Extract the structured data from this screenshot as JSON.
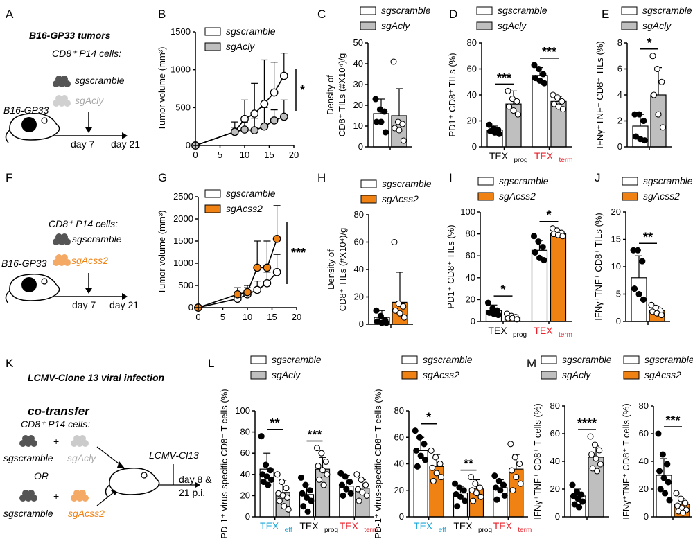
{
  "colors": {
    "scramble": "#ffffff",
    "acly": "#bfbfbf",
    "acss2": "#f08214",
    "black": "#000000",
    "cyan": "#19a7d9",
    "red": "#e8212a",
    "gray_text": "#a6a6a6"
  },
  "panels": {
    "A": "A",
    "B": "B",
    "C": "C",
    "D": "D",
    "E": "E",
    "F": "F",
    "G": "G",
    "H": "H",
    "I": "I",
    "J": "J",
    "K": "K",
    "L": "L",
    "M": "M"
  },
  "legend": {
    "scramble": "sgscramble",
    "acly": "sgAcly",
    "acss2": "sgAcss2"
  },
  "schematic": {
    "a_title": "B16-GP33 tumors",
    "a_cells": "CD8⁺ P14 cells:",
    "a_model": "B16-GP33",
    "day7": "day 7",
    "day21": "day 21",
    "f_cells": "CD8⁺ P14 cells:",
    "f_model": "B16-GP33",
    "k_title": "LCMV-Clone 13 viral infection",
    "k_co": "co-transfer",
    "k_cells": "CD8⁺ P14 cells:",
    "or": "OR",
    "plus": "+",
    "lcmv": "LCMV-Cl13",
    "day8": "day 8 &",
    "pi": "21 p.i."
  },
  "ylabels": {
    "tumor": "Tumor volume (mm³)",
    "dens1": "Density of",
    "dens2": "CD8⁺ TILs (#X10⁴)/g",
    "pd1": "PD1⁺ CD8⁺ TILs (%)",
    "ifn": "IFNγ⁺TNF⁺ CD8⁺ TILs (%)",
    "pd1v": "PD-1⁺ virus-specific CD8⁺ T cells (%)",
    "ifnt": "IFNγ⁺TNF⁺ CD8⁺ T cells (%)"
  },
  "xcats": {
    "prog": "TEX",
    "prog_sub": "prog",
    "term": "TEX",
    "term_sub": "term",
    "eff": "TEX",
    "eff_sub": "eff"
  },
  "chart_data": [
    {
      "panel": "B",
      "type": "line",
      "xlabel": "",
      "ylabel": "Tumor volume (mm³)",
      "xlim": [
        0,
        20
      ],
      "ylim": [
        0,
        1500
      ],
      "xticks": [
        0,
        5,
        10,
        15,
        20
      ],
      "yticks": [
        0,
        500,
        1000,
        1500
      ],
      "series": [
        {
          "name": "sgscramble",
          "x": [
            0,
            8,
            10,
            12,
            14,
            16,
            18
          ],
          "y": [
            0,
            180,
            350,
            420,
            550,
            700,
            920
          ],
          "err": [
            0,
            130,
            250,
            400,
            580,
            400,
            300
          ]
        },
        {
          "name": "sgAcly",
          "x": [
            0,
            8,
            10,
            12,
            14,
            16,
            18
          ],
          "y": [
            0,
            180,
            210,
            200,
            250,
            330,
            380
          ],
          "err": [
            0,
            60,
            100,
            160,
            250,
            140,
            220
          ]
        }
      ],
      "significance": "*"
    },
    {
      "panel": "C",
      "type": "bar",
      "ylabel": "Density of CD8⁺ TILs (#X10⁴)/g",
      "ylim": [
        0,
        50
      ],
      "yticks": [
        0,
        10,
        20,
        30,
        40,
        50
      ],
      "series": [
        {
          "name": "sgscramble",
          "values": [
            16
          ],
          "err": [
            7
          ],
          "points": [
            23,
            18,
            17,
            12,
            12,
            7
          ]
        },
        {
          "name": "sgAcly",
          "values": [
            15
          ],
          "err": [
            13
          ],
          "points": [
            41,
            12,
            11,
            9,
            8,
            3
          ]
        }
      ]
    },
    {
      "panel": "D",
      "type": "bar",
      "ylabel": "PD1⁺ CD8⁺ TILs (%)",
      "categories": [
        "TEXprog",
        "TEXterm"
      ],
      "ylim": [
        0,
        80
      ],
      "yticks": [
        0,
        20,
        40,
        60,
        80
      ],
      "series": [
        {
          "name": "sgscramble",
          "values": [
            13,
            55
          ],
          "err": [
            3,
            6
          ],
          "points": [
            [
              17,
              14,
              13,
              12,
              11,
              10
            ],
            [
              63,
              60,
              56,
              53,
              51,
              49
            ]
          ]
        },
        {
          "name": "sgAcly",
          "values": [
            33,
            35
          ],
          "err": [
            10,
            4
          ],
          "points": [
            [
              43,
              37,
              35,
              31,
              28,
              25
            ],
            [
              40,
              38,
              35,
              33,
              31,
              29
            ]
          ]
        }
      ],
      "significance": [
        "***",
        "***"
      ]
    },
    {
      "panel": "E",
      "type": "bar",
      "ylabel": "IFNγ⁺TNF⁺ CD8⁺ TILs (%)",
      "ylim": [
        0,
        8
      ],
      "yticks": [
        0,
        2,
        4,
        6,
        8
      ],
      "series": [
        {
          "name": "sgscramble",
          "values": [
            1.6
          ],
          "err": [
            0.9
          ],
          "points": [
            2.5,
            2.5,
            2.0,
            0.8,
            0.6,
            0.5
          ]
        },
        {
          "name": "sgAcly",
          "values": [
            4.0
          ],
          "err": [
            2.1
          ],
          "points": [
            7.0,
            6.0,
            5.0,
            4.0,
            2.5,
            1.5
          ]
        }
      ],
      "significance": "*"
    },
    {
      "panel": "G",
      "type": "line",
      "ylabel": "Tumor volume (mm³)",
      "xlim": [
        0,
        20
      ],
      "ylim": [
        0,
        2500
      ],
      "xticks": [
        0,
        5,
        10,
        15,
        20
      ],
      "yticks": [
        0,
        500,
        1000,
        1500,
        2000,
        2500
      ],
      "series": [
        {
          "name": "sgscramble",
          "x": [
            0,
            8,
            10,
            12,
            14,
            16
          ],
          "y": [
            0,
            200,
            300,
            400,
            550,
            800
          ],
          "err": [
            0,
            100,
            150,
            200,
            250,
            400
          ]
        },
        {
          "name": "sgAcss2",
          "x": [
            0,
            8,
            10,
            12,
            14,
            16
          ],
          "y": [
            0,
            300,
            350,
            900,
            900,
            1550
          ],
          "err": [
            0,
            150,
            150,
            600,
            600,
            750
          ]
        }
      ],
      "significance": "***"
    },
    {
      "panel": "H",
      "type": "bar",
      "ylabel": "Density of CD8⁺ TILs (#X10⁴)/g",
      "ylim": [
        0,
        80
      ],
      "yticks": [
        0,
        20,
        40,
        60,
        80
      ],
      "series": [
        {
          "name": "sgscramble",
          "values": [
            5
          ],
          "err": [
            5
          ],
          "points": [
            10,
            6,
            3,
            2,
            1,
            1
          ]
        },
        {
          "name": "sgAcss2",
          "values": [
            16
          ],
          "err": [
            22
          ],
          "points": [
            60,
            15,
            13,
            10,
            8,
            5
          ]
        }
      ]
    },
    {
      "panel": "I",
      "type": "bar",
      "ylabel": "PD1⁺ CD8⁺ TILs (%)",
      "categories": [
        "TEXprog",
        "TEXterm"
      ],
      "ylim": [
        0,
        100
      ],
      "yticks": [
        0,
        20,
        40,
        60,
        80,
        100
      ],
      "series": [
        {
          "name": "sgscramble",
          "values": [
            10,
            65
          ],
          "err": [
            5,
            9
          ],
          "points": [
            [
              17,
              12,
              10,
              8,
              7,
              6
            ],
            [
              78,
              73,
              68,
              63,
              58,
              56
            ]
          ]
        },
        {
          "name": "sgAcss2",
          "values": [
            4,
            80
          ],
          "err": [
            2,
            3
          ],
          "points": [
            [
              7,
              5,
              4,
              3,
              3,
              2
            ],
            [
              85,
              83,
              81,
              80,
              79,
              78
            ]
          ]
        }
      ],
      "significance": [
        "*",
        "*"
      ]
    },
    {
      "panel": "J",
      "type": "bar",
      "ylabel": "IFNγ⁺TNF⁺ CD8⁺ TILs (%)",
      "ylim": [
        0,
        20
      ],
      "yticks": [
        0,
        5,
        10,
        15,
        20
      ],
      "series": [
        {
          "name": "sgscramble",
          "values": [
            8
          ],
          "err": [
            4
          ],
          "points": [
            13,
            13,
            11,
            6,
            5,
            4
          ]
        },
        {
          "name": "sgAcss2",
          "values": [
            2
          ],
          "err": [
            0.8
          ],
          "points": [
            3,
            2.5,
            2,
            1.8,
            1.5,
            1.2
          ]
        }
      ],
      "significance": "**"
    },
    {
      "panel": "L1",
      "type": "bar",
      "ylabel": "PD-1⁺ virus-specific CD8⁺ T cells (%)",
      "categories": [
        "TEXeff",
        "TEXprog",
        "TEXterm"
      ],
      "ylim": [
        0,
        100
      ],
      "yticks": [
        0,
        20,
        40,
        60,
        80,
        100
      ],
      "series": [
        {
          "name": "sgscramble",
          "values": [
            45,
            21,
            29
          ],
          "err": [
            15,
            10,
            10
          ],
          "points": [
            [
              76,
              49,
              44,
              40,
              38,
              35,
              33,
              30
            ],
            [
              37,
              30,
              25,
              22,
              18,
              15,
              10,
              5
            ],
            [
              41,
              38,
              33,
              30,
              26,
              22,
              20
            ]
          ]
        },
        {
          "name": "sgAcly",
          "values": [
            23,
            45,
            27
          ],
          "err": [
            11,
            11,
            8
          ],
          "points": [
            [
              40,
              33,
              27,
              22,
              20,
              18,
              15,
              10,
              7
            ],
            [
              65,
              60,
              52,
              48,
              44,
              40,
              35,
              30
            ],
            [
              40,
              35,
              30,
              26,
              23,
              20,
              15
            ]
          ]
        }
      ],
      "significance": [
        "**",
        "***"
      ]
    },
    {
      "panel": "L2",
      "type": "bar",
      "ylabel": "PD-1⁺ virus-specific CD8⁺ T cells (%)",
      "categories": [
        "TEXeff",
        "TEXprog",
        "TEXterm"
      ],
      "ylim": [
        0,
        80
      ],
      "yticks": [
        0,
        20,
        40,
        60,
        80
      ],
      "series": [
        {
          "name": "sgscramble",
          "values": [
            50,
            18,
            22
          ],
          "err": [
            10,
            5,
            6
          ],
          "points": [
            [
              65,
              60,
              55,
              50,
              46,
              43,
              38
            ],
            [
              25,
              22,
              20,
              17,
              15,
              12,
              8
            ],
            [
              31,
              27,
              24,
              22,
              20,
              16,
              13
            ]
          ]
        },
        {
          "name": "sgAcss2",
          "values": [
            38,
            21,
            36
          ],
          "err": [
            9,
            7,
            11
          ],
          "points": [
            [
              50,
              45,
              40,
              37,
              33,
              30,
              27
            ],
            [
              30,
              25,
              22,
              20,
              18,
              15,
              12
            ],
            [
              55,
              45,
              40,
              35,
              30,
              25,
              20
            ]
          ]
        }
      ],
      "significance": [
        "*",
        "**"
      ]
    },
    {
      "panel": "M1",
      "type": "bar",
      "ylabel": "IFNγ⁺TNF⁺ CD8⁺ T cells (%)",
      "ylim": [
        0,
        80
      ],
      "yticks": [
        0,
        20,
        40,
        60,
        80
      ],
      "series": [
        {
          "name": "sgscramble",
          "values": [
            15
          ],
          "err": [
            5
          ],
          "points": [
            23,
            18,
            16,
            15,
            13,
            11,
            9,
            7
          ]
        },
        {
          "name": "sgAcly",
          "values": [
            43
          ],
          "err": [
            8
          ],
          "points": [
            58,
            52,
            48,
            45,
            42,
            38,
            35,
            33
          ]
        }
      ],
      "significance": "****"
    },
    {
      "panel": "M2",
      "type": "bar",
      "ylabel": "IFNγ⁺TNF⁺ CD8⁺ T cells (%)",
      "ylim": [
        0,
        80
      ],
      "yticks": [
        0,
        20,
        40,
        60,
        80
      ],
      "series": [
        {
          "name": "sgscramble",
          "values": [
            30
          ],
          "err": [
            12
          ],
          "points": [
            60,
            45,
            38,
            33,
            28,
            25,
            20,
            17,
            12
          ]
        },
        {
          "name": "sgAcss2",
          "values": [
            9
          ],
          "err": [
            4
          ],
          "points": [
            17,
            13,
            10,
            8,
            6,
            5,
            4,
            3
          ]
        }
      ],
      "significance": "***"
    }
  ]
}
